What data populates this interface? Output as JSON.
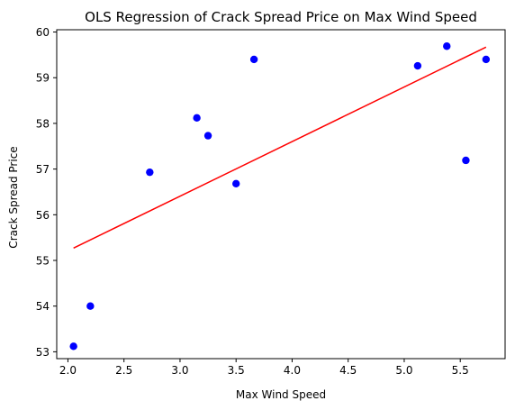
{
  "chart_data": {
    "type": "scatter",
    "title": "OLS Regression of Crack Spread Price on Max Wind Speed",
    "xlabel": "Max Wind Speed",
    "ylabel": "Crack Spread Price",
    "xlim": [
      1.9,
      5.9
    ],
    "ylim": [
      52.85,
      60.05
    ],
    "xticks": [
      2.0,
      2.5,
      3.0,
      3.5,
      4.0,
      4.5,
      5.0,
      5.5
    ],
    "xtick_labels": [
      "2.0",
      "2.5",
      "3.0",
      "3.5",
      "4.0",
      "4.5",
      "5.0",
      "5.5"
    ],
    "yticks": [
      53,
      54,
      55,
      56,
      57,
      58,
      59,
      60
    ],
    "ytick_labels": [
      "53",
      "54",
      "55",
      "56",
      "57",
      "58",
      "59",
      "60"
    ],
    "grid": false,
    "series": [
      {
        "type": "scatter",
        "color": "#0000ff",
        "points": [
          {
            "x": 2.05,
            "y": 53.12
          },
          {
            "x": 2.2,
            "y": 54.0
          },
          {
            "x": 2.73,
            "y": 56.93
          },
          {
            "x": 3.15,
            "y": 58.12
          },
          {
            "x": 3.25,
            "y": 57.73
          },
          {
            "x": 3.5,
            "y": 56.68
          },
          {
            "x": 3.66,
            "y": 59.4
          },
          {
            "x": 5.12,
            "y": 59.26
          },
          {
            "x": 5.38,
            "y": 59.69
          },
          {
            "x": 5.55,
            "y": 57.19
          },
          {
            "x": 5.73,
            "y": 59.4
          }
        ]
      },
      {
        "type": "line",
        "color": "#ff0000",
        "points": [
          {
            "x": 2.05,
            "y": 55.27
          },
          {
            "x": 5.73,
            "y": 59.67
          }
        ]
      }
    ]
  }
}
